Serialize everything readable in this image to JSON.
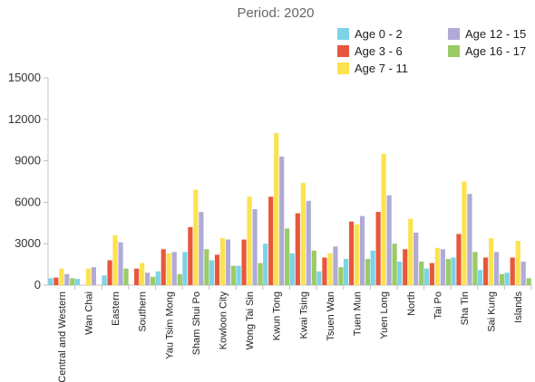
{
  "chart_data": {
    "type": "bar",
    "title": "Period: 2020",
    "xlabel": "",
    "ylabel": "",
    "ylim": [
      0,
      15000
    ],
    "yticks": [
      "0",
      "3000",
      "6000",
      "9000",
      "12000",
      "15000"
    ],
    "grid": false,
    "legend_position": "top-right",
    "categories": [
      "Central and Western",
      "Wan Chai",
      "Eastern",
      "Southern",
      "Yau Tsim Mong",
      "Sham Shui Po",
      "Kowloon City",
      "Wong Tai Sin",
      "Kwun Tong",
      "Kwai Tsing",
      "Tsuen Wan",
      "Tuen Mun",
      "Yuen Long",
      "North",
      "Tai Po",
      "Sha Tin",
      "Sai Kung",
      "Islands"
    ],
    "series": [
      {
        "name": "Age 0 - 2",
        "color": "#7dd3e8",
        "values": [
          500,
          450,
          700,
          0,
          1000,
          2400,
          1800,
          1400,
          3000,
          2300,
          1000,
          1900,
          2500,
          1700,
          1200,
          2000,
          1100,
          900
        ]
      },
      {
        "name": "Age 3 - 6",
        "color": "#e8573c",
        "values": [
          550,
          0,
          1800,
          1200,
          2600,
          4200,
          2200,
          3300,
          6400,
          5200,
          2000,
          4600,
          5300,
          2600,
          1600,
          3700,
          2000,
          2000
        ]
      },
      {
        "name": "Age 7 - 11",
        "color": "#fce24e",
        "values": [
          1200,
          1200,
          3600,
          1600,
          2300,
          6900,
          3400,
          6400,
          11000,
          7400,
          2300,
          4400,
          9500,
          4800,
          2700,
          7500,
          3400,
          3200
        ]
      },
      {
        "name": "Age 12 - 15",
        "color": "#b0abd6",
        "values": [
          800,
          1300,
          3100,
          900,
          2400,
          5300,
          3300,
          5500,
          9300,
          6100,
          2800,
          5000,
          6500,
          3800,
          2600,
          6600,
          2400,
          1700
        ]
      },
      {
        "name": "Age 16 - 17",
        "color": "#99cc66",
        "values": [
          500,
          0,
          1200,
          600,
          800,
          2600,
          1400,
          1600,
          4100,
          2500,
          1300,
          1900,
          3000,
          1700,
          1900,
          2400,
          800,
          500
        ]
      }
    ]
  }
}
